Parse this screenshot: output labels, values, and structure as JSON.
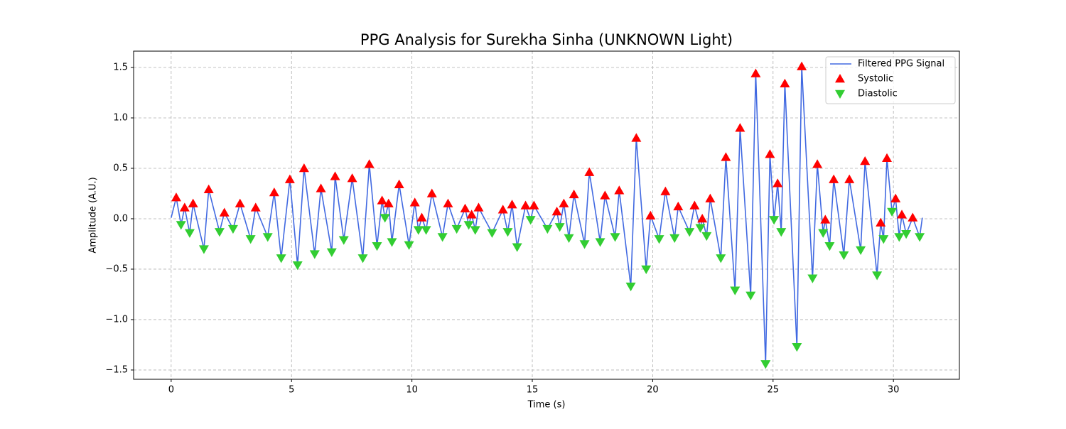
{
  "chart_data": {
    "type": "line",
    "title": "PPG Analysis for Surekha Sinha (UNKNOWN Light)",
    "x_label": "Time (s)",
    "y_label": "Amplitude (A.U.)",
    "xlim": [
      -1.56,
      32.74
    ],
    "ylim": [
      -1.592,
      1.662
    ],
    "xticks": [
      0,
      5,
      10,
      15,
      20,
      25,
      30
    ],
    "yticks": [
      {
        "value": -1.5,
        "label": "−1.5"
      },
      {
        "value": -1.0,
        "label": "−1.0"
      },
      {
        "value": -0.5,
        "label": "−0.5"
      },
      {
        "value": 0.0,
        "label": "0.0"
      },
      0.5,
      {
        "value": 1.0,
        "label": "1.0"
      },
      1.5
    ],
    "grid": true,
    "legend": "upper right",
    "series": [
      {
        "name": "Filtered PPG Signal",
        "color": "#4169e1",
        "x": [
          0.0,
          0.21,
          0.41,
          0.56,
          0.77,
          0.91,
          1.36,
          1.56,
          2.01,
          2.21,
          2.57,
          2.86,
          3.3,
          3.51,
          4.01,
          4.28,
          4.57,
          4.93,
          5.25,
          5.52,
          5.96,
          6.22,
          6.67,
          6.81,
          7.17,
          7.52,
          7.96,
          8.23,
          8.55,
          8.76,
          8.88,
          9.03,
          9.17,
          9.47,
          9.88,
          10.12,
          10.27,
          10.41,
          10.59,
          10.83,
          11.27,
          11.5,
          11.86,
          12.21,
          12.36,
          12.48,
          12.63,
          12.77,
          13.33,
          13.78,
          13.98,
          14.16,
          14.37,
          14.72,
          14.93,
          15.07,
          15.63,
          16.02,
          16.14,
          16.31,
          16.52,
          16.73,
          17.17,
          17.37,
          17.82,
          18.02,
          18.44,
          18.61,
          19.09,
          19.32,
          19.73,
          19.91,
          20.27,
          20.53,
          20.91,
          21.06,
          21.53,
          21.74,
          21.98,
          22.06,
          22.24,
          22.39,
          22.83,
          23.04,
          23.42,
          23.63,
          24.07,
          24.28,
          24.69,
          24.87,
          25.04,
          25.19,
          25.34,
          25.49,
          25.99,
          26.19,
          26.64,
          26.84,
          27.08,
          27.17,
          27.35,
          27.52,
          27.94,
          28.17,
          28.64,
          28.82,
          29.32,
          29.47,
          29.59,
          29.73,
          29.94,
          30.09,
          30.24,
          30.35,
          30.53,
          30.8,
          31.09,
          31.2
        ],
        "values": [
          0.01,
          0.21,
          -0.06,
          0.11,
          -0.14,
          0.15,
          -0.3,
          0.29,
          -0.13,
          0.06,
          -0.1,
          0.15,
          -0.2,
          0.11,
          -0.18,
          0.26,
          -0.39,
          0.39,
          -0.46,
          0.5,
          -0.35,
          0.3,
          -0.33,
          0.42,
          -0.21,
          0.4,
          -0.39,
          0.54,
          -0.27,
          0.18,
          0.01,
          0.15,
          -0.23,
          0.34,
          -0.26,
          0.16,
          -0.11,
          0.01,
          -0.11,
          0.25,
          -0.18,
          0.15,
          -0.1,
          0.1,
          -0.06,
          0.04,
          -0.11,
          0.11,
          -0.14,
          0.09,
          -0.13,
          0.14,
          -0.28,
          0.13,
          -0.01,
          0.13,
          -0.1,
          0.07,
          -0.08,
          0.15,
          -0.19,
          0.24,
          -0.25,
          0.46,
          -0.23,
          0.23,
          -0.18,
          0.28,
          -0.67,
          0.8,
          -0.5,
          0.03,
          -0.2,
          0.27,
          -0.19,
          0.12,
          -0.13,
          0.13,
          -0.09,
          0.0,
          -0.17,
          0.2,
          -0.39,
          0.61,
          -0.71,
          0.9,
          -0.76,
          1.44,
          -1.44,
          0.64,
          -0.01,
          0.35,
          -0.13,
          1.34,
          -1.27,
          1.51,
          -0.59,
          0.54,
          -0.14,
          -0.01,
          -0.27,
          0.39,
          -0.36,
          0.39,
          -0.31,
          0.57,
          -0.56,
          -0.04,
          -0.2,
          0.6,
          0.07,
          0.2,
          -0.18,
          0.04,
          -0.15,
          0.01,
          -0.18,
          0.01
        ]
      },
      {
        "name": "Systolic",
        "color": "#ff0000",
        "marker": "^",
        "x": [
          0.21,
          0.56,
          0.91,
          1.56,
          2.21,
          2.86,
          3.51,
          4.28,
          4.93,
          5.52,
          6.22,
          6.81,
          7.52,
          8.23,
          8.76,
          9.03,
          9.47,
          10.12,
          10.41,
          10.83,
          11.5,
          12.21,
          12.48,
          12.77,
          13.78,
          14.16,
          14.72,
          15.07,
          16.02,
          16.31,
          16.73,
          17.37,
          18.02,
          18.61,
          19.32,
          19.91,
          20.53,
          21.06,
          21.74,
          22.06,
          22.39,
          23.04,
          23.63,
          24.28,
          24.87,
          25.19,
          25.49,
          26.19,
          26.84,
          27.17,
          27.52,
          28.17,
          28.82,
          29.47,
          29.73,
          30.09,
          30.35,
          30.8
        ],
        "values": [
          0.21,
          0.11,
          0.15,
          0.29,
          0.06,
          0.15,
          0.11,
          0.26,
          0.39,
          0.5,
          0.3,
          0.42,
          0.4,
          0.54,
          0.18,
          0.15,
          0.34,
          0.16,
          0.01,
          0.25,
          0.15,
          0.1,
          0.04,
          0.11,
          0.09,
          0.14,
          0.13,
          0.13,
          0.07,
          0.15,
          0.24,
          0.46,
          0.23,
          0.28,
          0.8,
          0.03,
          0.27,
          0.12,
          0.13,
          0.0,
          0.2,
          0.61,
          0.9,
          1.44,
          0.64,
          0.35,
          1.34,
          1.51,
          0.54,
          -0.01,
          0.39,
          0.39,
          0.57,
          -0.04,
          0.6,
          0.2,
          0.04,
          0.01
        ]
      },
      {
        "name": "Diastolic",
        "color": "#32cd32",
        "marker": "v",
        "x": [
          0.41,
          0.77,
          1.36,
          2.01,
          2.57,
          3.3,
          4.01,
          4.57,
          5.25,
          5.96,
          6.67,
          7.17,
          7.96,
          8.55,
          8.88,
          9.17,
          9.88,
          10.27,
          10.59,
          11.27,
          11.86,
          12.36,
          12.63,
          13.33,
          13.98,
          14.37,
          14.93,
          15.63,
          16.14,
          16.52,
          17.17,
          17.82,
          18.44,
          19.09,
          19.73,
          20.27,
          20.91,
          21.53,
          21.98,
          22.24,
          22.83,
          23.42,
          24.07,
          24.69,
          25.04,
          25.34,
          25.99,
          26.64,
          27.08,
          27.35,
          27.94,
          28.64,
          29.32,
          29.59,
          29.94,
          30.24,
          30.53,
          31.09
        ],
        "values": [
          -0.06,
          -0.14,
          -0.3,
          -0.13,
          -0.1,
          -0.2,
          -0.18,
          -0.39,
          -0.46,
          -0.35,
          -0.33,
          -0.21,
          -0.39,
          -0.27,
          0.01,
          -0.23,
          -0.26,
          -0.11,
          -0.11,
          -0.18,
          -0.1,
          -0.06,
          -0.11,
          -0.14,
          -0.13,
          -0.28,
          -0.01,
          -0.1,
          -0.08,
          -0.19,
          -0.25,
          -0.23,
          -0.18,
          -0.67,
          -0.5,
          -0.2,
          -0.19,
          -0.13,
          -0.09,
          -0.17,
          -0.39,
          -0.71,
          -0.76,
          -1.44,
          -0.01,
          -0.13,
          -1.27,
          -0.59,
          -0.14,
          -0.27,
          -0.36,
          -0.31,
          -0.56,
          -0.2,
          0.07,
          -0.18,
          -0.15,
          -0.18
        ]
      }
    ]
  }
}
